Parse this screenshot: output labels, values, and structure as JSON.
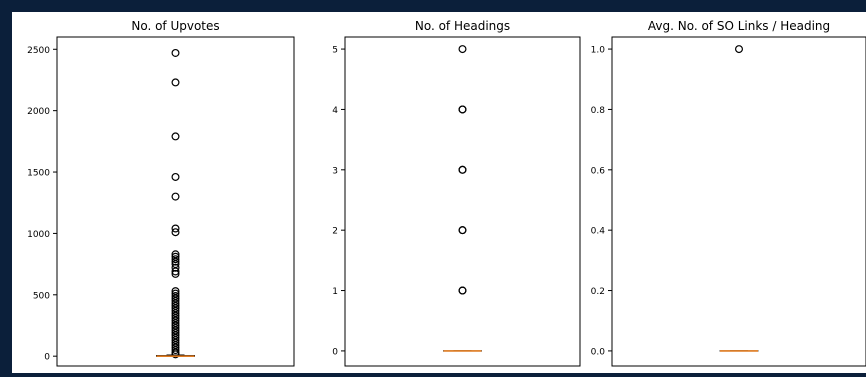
{
  "chart_data": [
    {
      "type": "boxplot",
      "title": "No. of Upvotes",
      "xlabel": "",
      "ylabel": "",
      "ylim": [
        -80,
        2600
      ],
      "yticks": [
        0,
        500,
        1000,
        1500,
        2000,
        2500
      ],
      "ytick_labels": [
        "0",
        "500",
        "1000",
        "1500",
        "2000",
        "2500"
      ],
      "median": 0,
      "q1": 0,
      "q3": 5,
      "whisker_low": 0,
      "whisker_high": 10,
      "outliers": [
        2470,
        2230,
        1790,
        1460,
        1300,
        1040,
        1010,
        830,
        810,
        790,
        770,
        750,
        720,
        690,
        670,
        530,
        510,
        490,
        470,
        450,
        430,
        410,
        390,
        370,
        350,
        330,
        310,
        290,
        270,
        250,
        230,
        210,
        190,
        170,
        150,
        130,
        110,
        90,
        70,
        50,
        30,
        15
      ]
    },
    {
      "type": "boxplot",
      "title": "No. of Headings",
      "xlabel": "",
      "ylabel": "",
      "ylim": [
        -0.25,
        5.2
      ],
      "yticks": [
        0,
        1,
        2,
        3,
        4,
        5
      ],
      "ytick_labels": [
        "0",
        "1",
        "2",
        "3",
        "4",
        "5"
      ],
      "median": 0,
      "q1": 0,
      "q3": 0,
      "whisker_low": 0,
      "whisker_high": 0,
      "outliers": [
        5,
        4,
        4,
        3,
        3,
        2,
        2,
        1,
        1
      ]
    },
    {
      "type": "boxplot",
      "title": "Avg. No. of SO Links / Heading",
      "xlabel": "",
      "ylabel": "",
      "ylim": [
        -0.05,
        1.04
      ],
      "yticks": [
        0,
        0.2,
        0.4,
        0.6,
        0.8,
        1.0
      ],
      "ytick_labels": [
        "0.0",
        "0.2",
        "0.4",
        "0.6",
        "0.8",
        "1.0"
      ],
      "median": 0,
      "q1": 0,
      "q3": 0,
      "whisker_low": 0,
      "whisker_high": 0,
      "outliers": [
        1.0
      ]
    }
  ],
  "colors": {
    "background": "#0b1f3a",
    "panel": "#ffffff",
    "median": "#e07b20",
    "outlier": "#000000"
  }
}
